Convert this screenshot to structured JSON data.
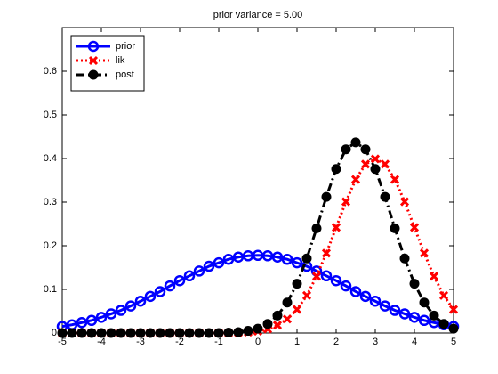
{
  "chart_data": {
    "type": "line",
    "title": "prior variance = 5.00",
    "x": [
      -5,
      -4.75,
      -4.5,
      -4.25,
      -4,
      -3.75,
      -3.5,
      -3.25,
      -3,
      -2.75,
      -2.5,
      -2.25,
      -2,
      -1.75,
      -1.5,
      -1.25,
      -1,
      -0.75,
      -0.5,
      -0.25,
      0,
      0.25,
      0.5,
      0.75,
      1,
      1.25,
      1.5,
      1.75,
      2,
      2.25,
      2.5,
      2.75,
      3,
      3.25,
      3.5,
      3.75,
      4,
      4.25,
      4.5,
      4.75,
      5
    ],
    "series": [
      {
        "name": "prior",
        "color": "#0000ff",
        "linestyle": "-",
        "marker": "o",
        "values": [
          0.015,
          0.019,
          0.024,
          0.029,
          0.036,
          0.044,
          0.052,
          0.062,
          0.073,
          0.084,
          0.095,
          0.108,
          0.12,
          0.131,
          0.142,
          0.153,
          0.161,
          0.169,
          0.174,
          0.177,
          0.178,
          0.177,
          0.174,
          0.169,
          0.161,
          0.153,
          0.142,
          0.131,
          0.12,
          0.108,
          0.095,
          0.084,
          0.073,
          0.062,
          0.052,
          0.044,
          0.036,
          0.029,
          0.024,
          0.019,
          0.015
        ]
      },
      {
        "name": "lik",
        "color": "#ff0000",
        "linestyle": ":",
        "marker": "x",
        "values": [
          0,
          0,
          0,
          0,
          0,
          0,
          0,
          0,
          0,
          0,
          0,
          0,
          0,
          0,
          0,
          0,
          0,
          0,
          0.001,
          0.002,
          0.004,
          0.009,
          0.018,
          0.032,
          0.054,
          0.086,
          0.13,
          0.183,
          0.242,
          0.301,
          0.352,
          0.387,
          0.399,
          0.387,
          0.352,
          0.301,
          0.242,
          0.183,
          0.13,
          0.086,
          0.054
        ]
      },
      {
        "name": "post",
        "color": "#000000",
        "linestyle": "-.",
        "marker": "*",
        "values": [
          0,
          0,
          0,
          0,
          0,
          0,
          0,
          0,
          0,
          0,
          0,
          0,
          0,
          0,
          0,
          0,
          0,
          0.001,
          0.002,
          0.005,
          0.01,
          0.021,
          0.04,
          0.07,
          0.113,
          0.171,
          0.24,
          0.312,
          0.376,
          0.421,
          0.437,
          0.421,
          0.376,
          0.312,
          0.24,
          0.171,
          0.113,
          0.07,
          0.04,
          0.021,
          0.01
        ]
      }
    ],
    "xlim": [
      -5,
      5
    ],
    "xticks": [
      -5,
      -4,
      -3,
      -2,
      -1,
      0,
      1,
      2,
      3,
      4,
      5
    ],
    "ylim": [
      0,
      0.7
    ],
    "yticks": [
      0,
      0.1,
      0.2,
      0.3,
      0.4,
      0.5,
      0.6
    ],
    "legend": "upper left",
    "grid": false
  }
}
